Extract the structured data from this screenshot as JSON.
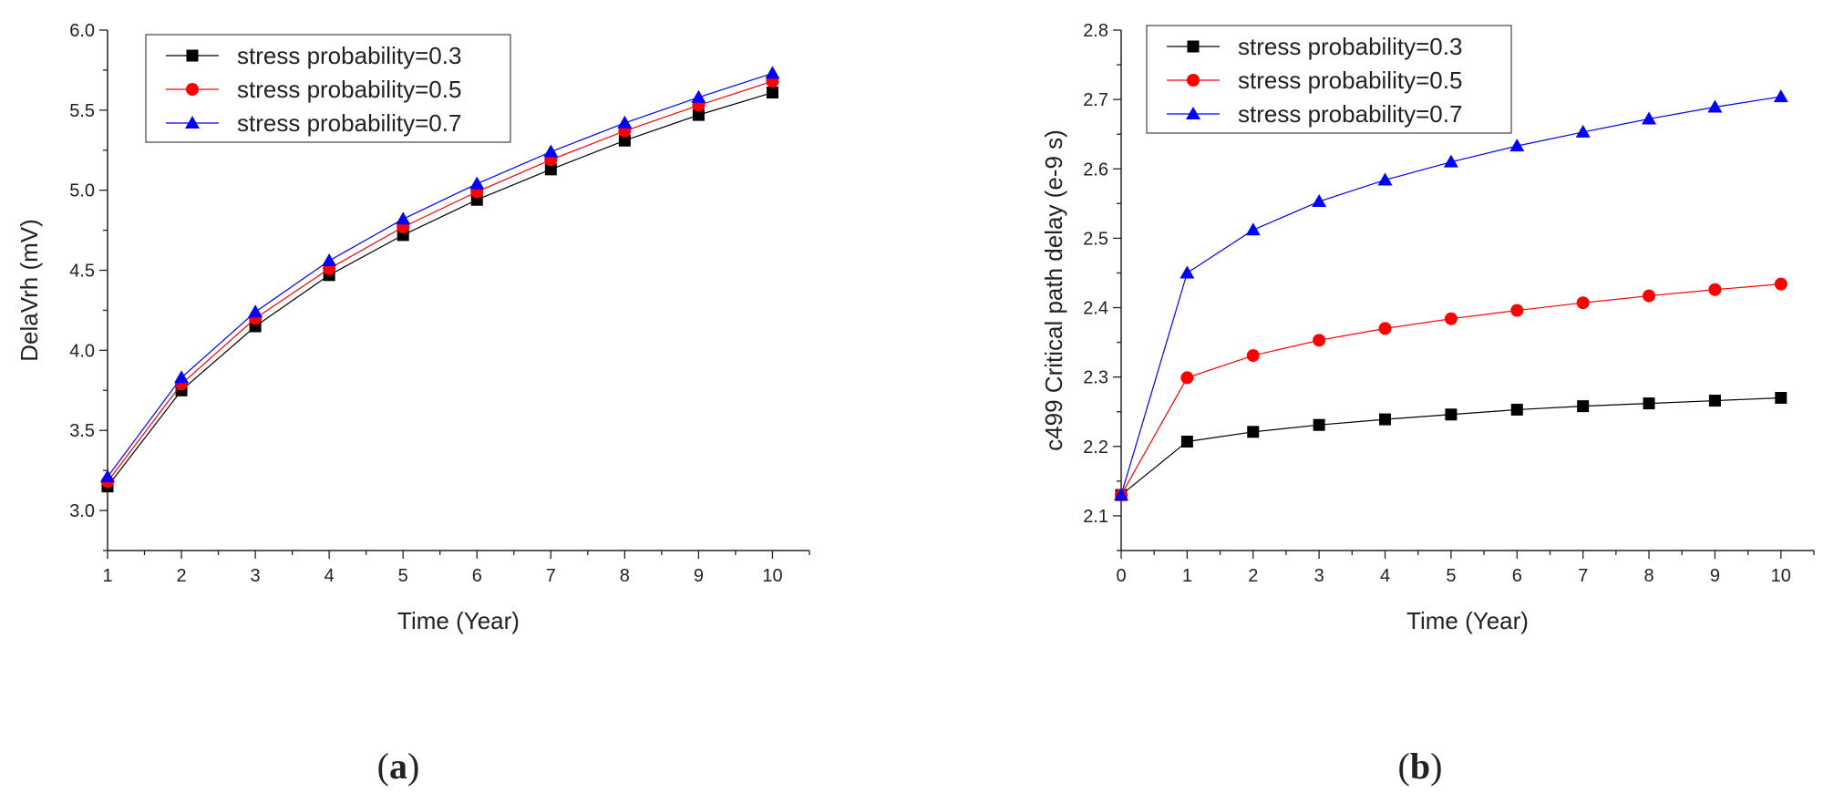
{
  "colors": {
    "series_0_3": "#000000",
    "series_0_5": "#ff0000",
    "series_0_7": "#0000ff"
  },
  "chart_data": [
    {
      "id": "a",
      "type": "line",
      "caption": "a",
      "xlabel": "Time (Year)",
      "ylabel": "DelaVrh (mV)",
      "xlim": [
        1,
        10.5
      ],
      "ylim": [
        2.75,
        6.0
      ],
      "xticks": [
        1,
        2,
        3,
        4,
        5,
        6,
        7,
        8,
        9,
        10
      ],
      "yticks": [
        3.0,
        3.5,
        4.0,
        4.5,
        5.0,
        5.5,
        6.0
      ],
      "ytick_labels": [
        "3.0",
        "3.5",
        "4.0",
        "4.5",
        "5.0",
        "5.5",
        "6.0"
      ],
      "legend_position": "top-left",
      "x": [
        1,
        2,
        3,
        4,
        5,
        6,
        7,
        8,
        9,
        10
      ],
      "series": [
        {
          "name": "stress probability=0.3",
          "marker": "square",
          "color": "#000000",
          "values": [
            3.15,
            3.75,
            4.15,
            4.47,
            4.72,
            4.94,
            5.13,
            5.31,
            5.47,
            5.61
          ]
        },
        {
          "name": "stress probability=0.5",
          "marker": "circle",
          "color": "#ff0000",
          "values": [
            3.18,
            3.79,
            4.2,
            4.51,
            4.77,
            4.99,
            5.19,
            5.37,
            5.53,
            5.68
          ]
        },
        {
          "name": "stress probability=0.7",
          "marker": "triangle",
          "color": "#0000ff",
          "values": [
            3.21,
            3.83,
            4.24,
            4.56,
            4.82,
            5.04,
            5.24,
            5.42,
            5.58,
            5.73
          ]
        }
      ]
    },
    {
      "id": "b",
      "type": "line",
      "caption": "b",
      "xlabel": "Time (Year)",
      "ylabel": "c499 Critical path delay (e-9 s)",
      "xlim": [
        0,
        10.5
      ],
      "ylim": [
        2.05,
        2.8
      ],
      "xticks": [
        0,
        1,
        2,
        3,
        4,
        5,
        6,
        7,
        8,
        9,
        10
      ],
      "yticks": [
        2.1,
        2.2,
        2.3,
        2.4,
        2.5,
        2.6,
        2.7,
        2.8
      ],
      "ytick_labels": [
        "2.1",
        "2.2",
        "2.3",
        "2.4",
        "2.5",
        "2.6",
        "2.7",
        "2.8"
      ],
      "legend_position": "top-left",
      "x": [
        0,
        1,
        2,
        3,
        4,
        5,
        6,
        7,
        8,
        9,
        10
      ],
      "series": [
        {
          "name": "stress probability=0.3",
          "marker": "square",
          "color": "#000000",
          "values": [
            2.13,
            2.207,
            2.221,
            2.231,
            2.239,
            2.246,
            2.253,
            2.258,
            2.262,
            2.266,
            2.27
          ]
        },
        {
          "name": "stress probability=0.5",
          "marker": "circle",
          "color": "#ff0000",
          "values": [
            2.13,
            2.299,
            2.331,
            2.353,
            2.37,
            2.384,
            2.396,
            2.407,
            2.417,
            2.426,
            2.434
          ]
        },
        {
          "name": "stress probability=0.7",
          "marker": "triangle",
          "color": "#0000ff",
          "values": [
            2.13,
            2.45,
            2.512,
            2.553,
            2.584,
            2.61,
            2.633,
            2.653,
            2.672,
            2.689,
            2.704
          ]
        }
      ]
    }
  ]
}
